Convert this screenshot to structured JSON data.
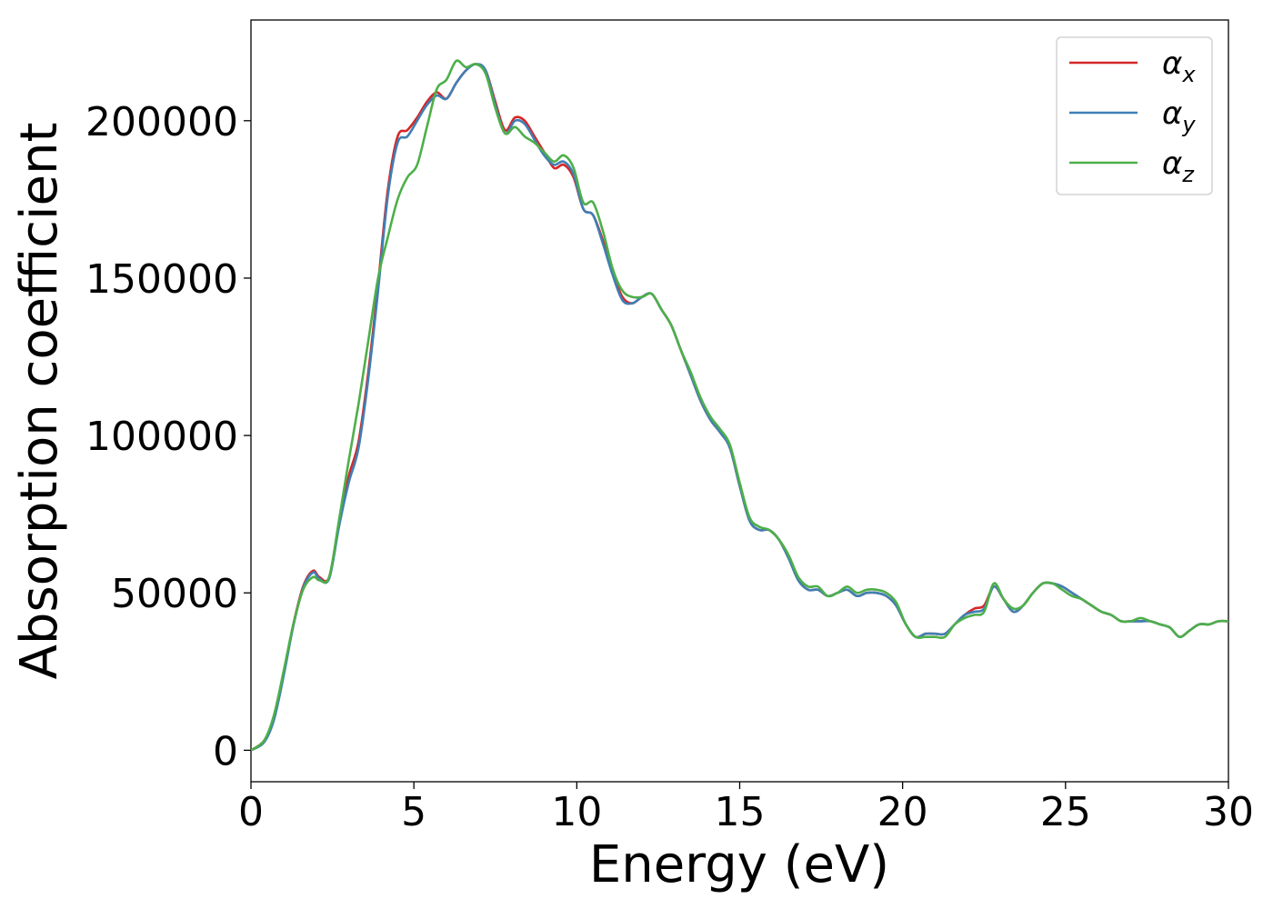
{
  "chart_data": {
    "type": "line",
    "title": "",
    "xlabel": "Energy (eV)",
    "ylabel": "Absorption coefficient",
    "xlim": [
      0,
      30
    ],
    "ylim": [
      -10000,
      232000
    ],
    "xticks": [
      0,
      5,
      10,
      15,
      20,
      25,
      30
    ],
    "xtick_labels": [
      "0",
      "5",
      "10",
      "15",
      "20",
      "25",
      "30"
    ],
    "yticks": [
      0,
      50000,
      100000,
      150000,
      200000
    ],
    "ytick_labels": [
      "0",
      "50000",
      "100000",
      "150000",
      "200000"
    ],
    "grid": false,
    "legend_position": "top-right",
    "series": [
      {
        "name": "αx",
        "symbol": "α",
        "subscript": "x",
        "color": "#d62728",
        "x": [
          0,
          0.4,
          0.7,
          1.0,
          1.3,
          1.6,
          1.9,
          2.1,
          2.4,
          2.7,
          3.0,
          3.3,
          3.6,
          3.9,
          4.2,
          4.5,
          4.8,
          5.1,
          5.4,
          5.7,
          6.0,
          6.3,
          6.6,
          6.9,
          7.2,
          7.5,
          7.8,
          8.1,
          8.4,
          8.7,
          9.0,
          9.3,
          9.6,
          9.9,
          10.2,
          10.5,
          10.8,
          11.1,
          11.4,
          11.7,
          12.0,
          12.3,
          12.6,
          12.9,
          13.2,
          13.5,
          13.8,
          14.1,
          14.4,
          14.7,
          15.0,
          15.3,
          15.6,
          15.9,
          16.2,
          16.5,
          16.8,
          17.1,
          17.4,
          17.7,
          18.0,
          18.3,
          18.6,
          18.9,
          19.2,
          19.5,
          19.8,
          20.1,
          20.4,
          20.7,
          21.0,
          21.3,
          21.6,
          21.9,
          22.2,
          22.5,
          22.8,
          23.1,
          23.4,
          23.7,
          24.0,
          24.3,
          24.6,
          24.9,
          25.2,
          25.5,
          25.8,
          26.1,
          26.4,
          26.7,
          27.0,
          27.3,
          27.6,
          27.9,
          28.2,
          28.5,
          28.8,
          29.1,
          29.4,
          29.7,
          30.0
        ],
        "values": [
          0,
          3000,
          10000,
          24000,
          40000,
          52000,
          57000,
          55000,
          55000,
          72000,
          87000,
          98000,
          120000,
          148000,
          178000,
          195000,
          197000,
          201000,
          206000,
          209000,
          207000,
          212000,
          216000,
          218000,
          216000,
          206000,
          197000,
          201000,
          200000,
          195000,
          190000,
          185000,
          186000,
          182000,
          172000,
          170000,
          162000,
          152000,
          144000,
          142000,
          144000,
          145000,
          140000,
          135000,
          127000,
          119000,
          111000,
          105000,
          101000,
          96000,
          84000,
          73000,
          70000,
          70000,
          67000,
          61000,
          54000,
          51000,
          51000,
          49000,
          50000,
          51000,
          49000,
          50000,
          50000,
          49000,
          46000,
          40000,
          36000,
          37000,
          37000,
          37000,
          40000,
          43000,
          45000,
          46000,
          52000,
          48000,
          44000,
          46000,
          50000,
          53000,
          53000,
          52000,
          50000,
          48000,
          46000,
          44000,
          43000,
          41000,
          41000,
          41000,
          41000,
          40000,
          39000,
          36000,
          38000,
          40000,
          40000,
          41000,
          41000
        ]
      },
      {
        "name": "αy",
        "symbol": "α",
        "subscript": "y",
        "color": "#3f7fb5",
        "x": [
          0,
          0.4,
          0.7,
          1.0,
          1.3,
          1.6,
          1.9,
          2.1,
          2.4,
          2.7,
          3.0,
          3.3,
          3.6,
          3.9,
          4.2,
          4.5,
          4.8,
          5.1,
          5.4,
          5.7,
          6.0,
          6.3,
          6.6,
          6.9,
          7.2,
          7.5,
          7.8,
          8.1,
          8.4,
          8.7,
          9.0,
          9.3,
          9.6,
          9.9,
          10.2,
          10.5,
          10.8,
          11.1,
          11.4,
          11.7,
          12.0,
          12.3,
          12.6,
          12.9,
          13.2,
          13.5,
          13.8,
          14.1,
          14.4,
          14.7,
          15.0,
          15.3,
          15.6,
          15.9,
          16.2,
          16.5,
          16.8,
          17.1,
          17.4,
          17.7,
          18.0,
          18.3,
          18.6,
          18.9,
          19.2,
          19.5,
          19.8,
          20.1,
          20.4,
          20.7,
          21.0,
          21.3,
          21.6,
          21.9,
          22.2,
          22.5,
          22.8,
          23.1,
          23.4,
          23.7,
          24.0,
          24.3,
          24.6,
          24.9,
          25.2,
          25.5,
          25.8,
          26.1,
          26.4,
          26.7,
          27.0,
          27.3,
          27.6,
          27.9,
          28.2,
          28.5,
          28.8,
          29.1,
          29.4,
          29.7,
          30.0
        ],
        "values": [
          0,
          2500,
          9500,
          23500,
          39500,
          51500,
          56500,
          54500,
          54500,
          71000,
          85000,
          96000,
          118000,
          146000,
          176000,
          193000,
          195000,
          200000,
          205000,
          208000,
          207000,
          212000,
          216000,
          218000,
          216000,
          205000,
          196000,
          200000,
          199000,
          194000,
          189000,
          186000,
          187000,
          183000,
          172000,
          170000,
          161000,
          151000,
          143000,
          142000,
          144000,
          145000,
          140000,
          135000,
          127000,
          119000,
          111000,
          105000,
          101000,
          96000,
          84000,
          73000,
          70000,
          70000,
          67000,
          61000,
          54000,
          51000,
          51000,
          49000,
          50000,
          51000,
          49000,
          50000,
          50000,
          49000,
          46000,
          40000,
          36000,
          37000,
          37000,
          37000,
          40000,
          43000,
          44000,
          45000,
          52000,
          48000,
          44000,
          46000,
          50000,
          53000,
          53000,
          52000,
          50000,
          48000,
          46000,
          44000,
          43000,
          41000,
          41000,
          41000,
          41000,
          40000,
          39000,
          36000,
          38000,
          40000,
          40000,
          41000,
          41000
        ]
      },
      {
        "name": "αz",
        "symbol": "α",
        "subscript": "z",
        "color": "#4daf4a",
        "x": [
          0,
          0.4,
          0.7,
          1.0,
          1.3,
          1.6,
          1.9,
          2.1,
          2.4,
          2.7,
          3.0,
          3.3,
          3.6,
          3.9,
          4.2,
          4.5,
          4.8,
          5.1,
          5.4,
          5.7,
          6.0,
          6.3,
          6.6,
          6.9,
          7.2,
          7.5,
          7.8,
          8.1,
          8.4,
          8.7,
          9.0,
          9.3,
          9.6,
          9.9,
          10.2,
          10.5,
          10.8,
          11.1,
          11.4,
          11.7,
          12.0,
          12.3,
          12.6,
          12.9,
          13.2,
          13.5,
          13.8,
          14.1,
          14.4,
          14.7,
          15.0,
          15.3,
          15.6,
          15.9,
          16.2,
          16.5,
          16.8,
          17.1,
          17.4,
          17.7,
          18.0,
          18.3,
          18.6,
          18.9,
          19.2,
          19.5,
          19.8,
          20.1,
          20.4,
          20.7,
          21.0,
          21.3,
          21.6,
          21.9,
          22.2,
          22.5,
          22.8,
          23.1,
          23.4,
          23.7,
          24.0,
          24.3,
          24.6,
          24.9,
          25.2,
          25.5,
          25.8,
          26.1,
          26.4,
          26.7,
          27.0,
          27.3,
          27.6,
          27.9,
          28.2,
          28.5,
          28.8,
          29.1,
          29.4,
          29.7,
          30.0
        ],
        "values": [
          0,
          3000,
          11000,
          25000,
          40000,
          51000,
          55000,
          54000,
          55000,
          73000,
          92000,
          110000,
          130000,
          150000,
          163000,
          175000,
          182000,
          186000,
          198000,
          210000,
          213000,
          219000,
          217000,
          218000,
          215000,
          204000,
          196000,
          198000,
          195000,
          193000,
          190000,
          187000,
          189000,
          185000,
          174000,
          174000,
          165000,
          153000,
          146000,
          144000,
          144000,
          145000,
          140000,
          135000,
          127000,
          120000,
          112000,
          106000,
          102000,
          97000,
          85000,
          74000,
          71000,
          70000,
          67000,
          62000,
          55000,
          52000,
          52000,
          49000,
          50000,
          52000,
          50000,
          51000,
          51000,
          50000,
          47000,
          40000,
          36000,
          36000,
          36000,
          36000,
          40000,
          42000,
          43000,
          44000,
          53000,
          48000,
          45000,
          46000,
          50000,
          53000,
          53000,
          51000,
          49000,
          48000,
          46000,
          44000,
          43000,
          41000,
          41000,
          42000,
          41000,
          40000,
          39000,
          36000,
          38000,
          40000,
          40000,
          41000,
          41000
        ]
      }
    ]
  }
}
